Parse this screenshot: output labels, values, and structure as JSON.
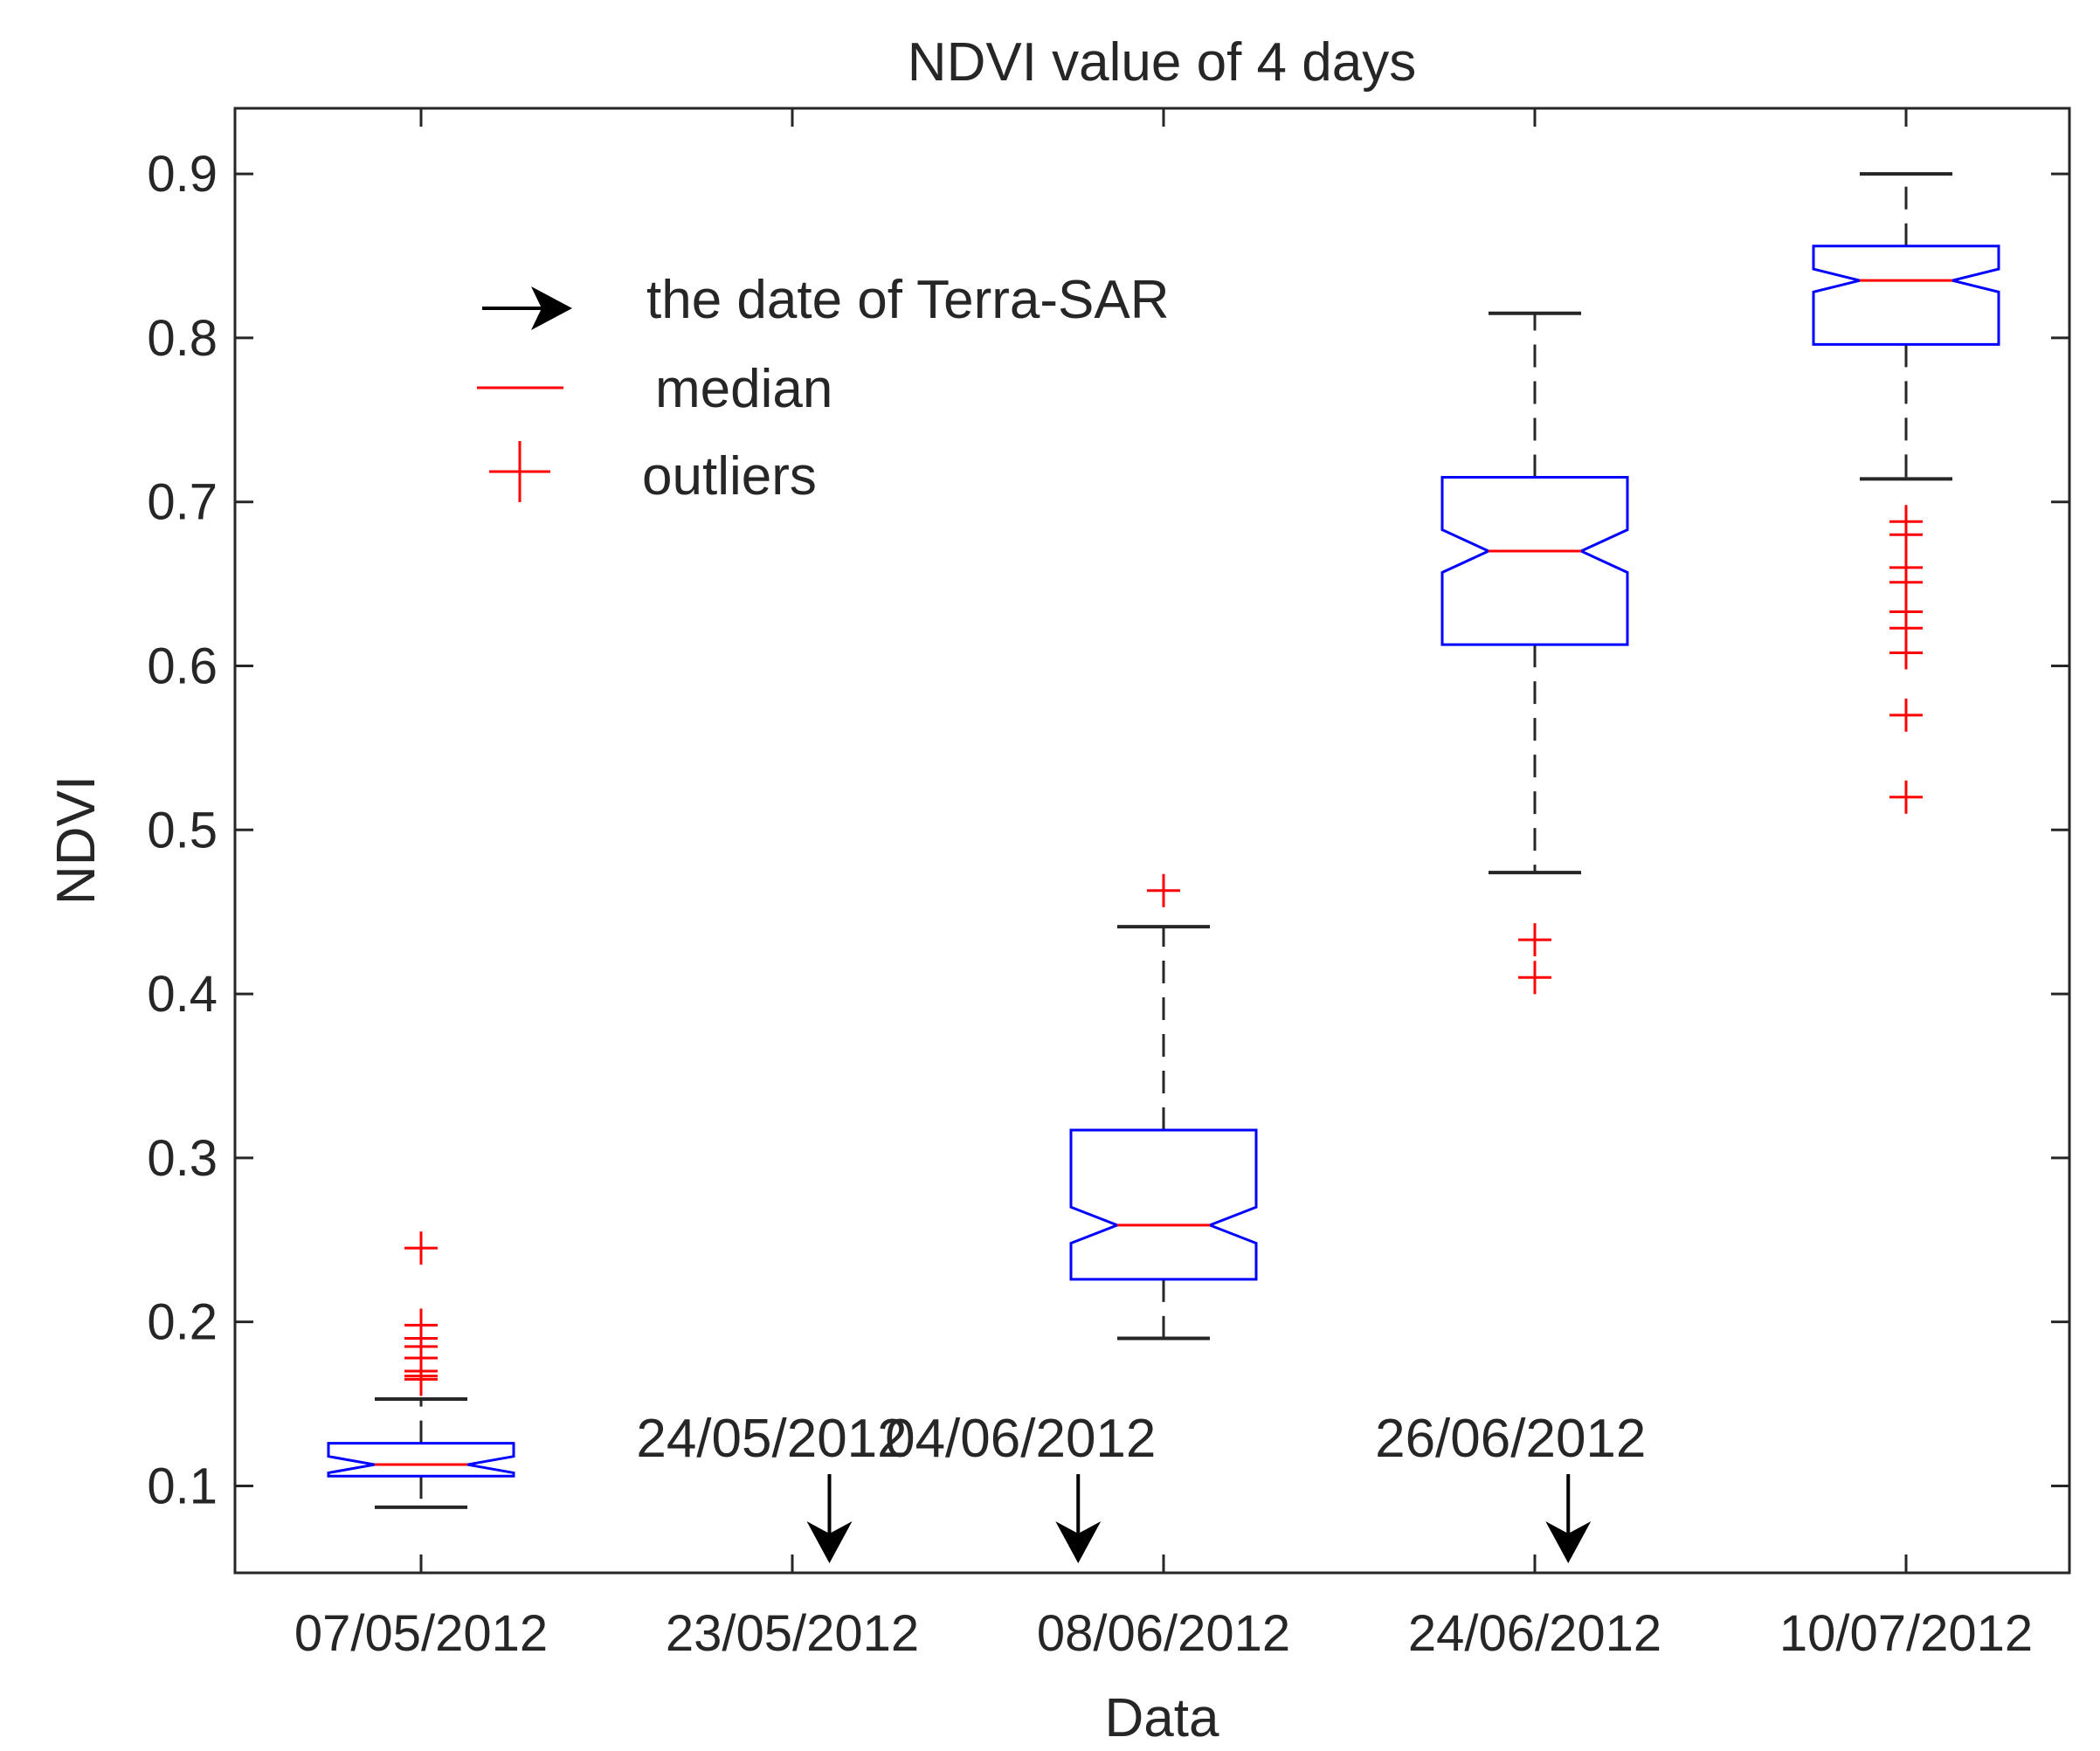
{
  "chart_data": {
    "type": "boxplot",
    "title": "NDVI value of 4 days",
    "xlabel": "Data",
    "ylabel": "NDVI",
    "ylim": [
      0.047,
      0.94
    ],
    "yticks": [
      0.1,
      0.2,
      0.3,
      0.4,
      0.5,
      0.6,
      0.7,
      0.8,
      0.9
    ],
    "ytick_labels": [
      "0.1",
      "0.2",
      "0.3",
      "0.4",
      "0.5",
      "0.6",
      "0.7",
      "0.8",
      "0.9"
    ],
    "categories": [
      "07/05/2012",
      "23/05/2012",
      "08/06/2012",
      "24/06/2012",
      "10/07/2012"
    ],
    "boxes": [
      {
        "category": "07/05/2012",
        "whisker_low": 0.087,
        "q1": 0.106,
        "notch_low": 0.108,
        "median": 0.113,
        "notch_high": 0.118,
        "q3": 0.126,
        "whisker_high": 0.153,
        "outliers": [
          0.245,
          0.198,
          0.19,
          0.185,
          0.178,
          0.17,
          0.167,
          0.165
        ]
      },
      {
        "category": "23/05/2012"
      },
      {
        "category": "08/06/2012",
        "whisker_low": 0.19,
        "q1": 0.226,
        "notch_low": 0.248,
        "median": 0.259,
        "notch_high": 0.27,
        "q3": 0.317,
        "whisker_high": 0.441,
        "outliers": [
          0.463
        ]
      },
      {
        "category": "24/06/2012",
        "whisker_low": 0.474,
        "q1": 0.613,
        "notch_low": 0.657,
        "median": 0.67,
        "notch_high": 0.683,
        "q3": 0.715,
        "whisker_high": 0.815,
        "outliers": [
          0.433,
          0.41
        ]
      },
      {
        "category": "10/07/2012",
        "whisker_low": 0.714,
        "q1": 0.796,
        "notch_low": 0.828,
        "median": 0.835,
        "notch_high": 0.842,
        "q3": 0.856,
        "whisker_high": 0.9,
        "outliers": [
          0.688,
          0.68,
          0.66,
          0.651,
          0.633,
          0.623,
          0.608,
          0.57,
          0.52
        ]
      }
    ],
    "annotations": [
      {
        "label": "24/05/2012",
        "x_position": 2.1,
        "description": "the date of Terra-SAR"
      },
      {
        "label": "04/06/2012",
        "x_position": 2.77,
        "description": "the date of Terra-SAR"
      },
      {
        "label": "26/06/2012",
        "x_position": 4.09,
        "description": "the date of Terra-SAR"
      }
    ],
    "legend": {
      "placement": "top-left",
      "entries": [
        {
          "symbol": "arrow",
          "label": "the date of Terra-SAR"
        },
        {
          "symbol": "line",
          "label": "median"
        },
        {
          "symbol": "plus",
          "label": "outliers"
        }
      ]
    },
    "colors": {
      "box": "#0000ff",
      "median": "#ff0000",
      "outlier": "#ff0000",
      "whisker": "#262626",
      "axis": "#262626",
      "annotation": "#000000"
    },
    "grid": false
  }
}
